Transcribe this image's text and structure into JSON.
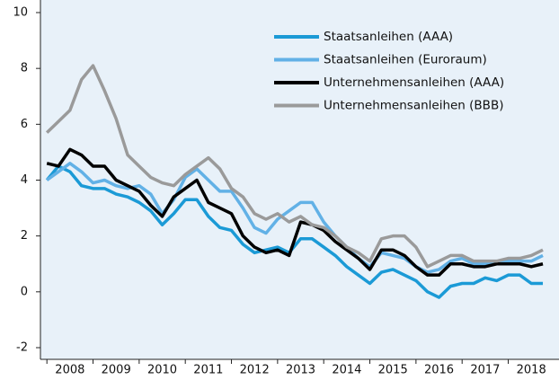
{
  "chart_data": {
    "type": "line",
    "x": [
      2008,
      2008.25,
      2008.5,
      2008.75,
      2009,
      2009.25,
      2009.5,
      2009.75,
      2010,
      2010.25,
      2010.5,
      2010.75,
      2011,
      2011.25,
      2011.5,
      2011.75,
      2012,
      2012.25,
      2012.5,
      2012.75,
      2013,
      2013.25,
      2013.5,
      2013.75,
      2014,
      2014.25,
      2014.5,
      2014.75,
      2015,
      2015.25,
      2015.5,
      2015.75,
      2016,
      2016.25,
      2016.5,
      2016.75,
      2017,
      2017.25,
      2017.5,
      2017.75,
      2018,
      2018.25,
      2018.5,
      2018.75
    ],
    "series": [
      {
        "name": "Staatsanleihen (AAA)",
        "color": "#1b9ad6",
        "values": [
          4.0,
          4.5,
          4.3,
          3.8,
          3.7,
          3.7,
          3.5,
          3.4,
          3.2,
          2.9,
          2.4,
          2.8,
          3.3,
          3.3,
          2.7,
          2.3,
          2.2,
          1.7,
          1.4,
          1.5,
          1.6,
          1.4,
          1.9,
          1.9,
          1.6,
          1.3,
          0.9,
          0.6,
          0.3,
          0.7,
          0.8,
          0.6,
          0.4,
          0.0,
          -0.2,
          0.2,
          0.3,
          0.3,
          0.5,
          0.4,
          0.6,
          0.6,
          0.3,
          0.3
        ]
      },
      {
        "name": "Staatsanleihen (Euroraum)",
        "color": "#62b1e6",
        "values": [
          4.0,
          4.3,
          4.6,
          4.3,
          3.9,
          4.0,
          3.8,
          3.7,
          3.8,
          3.5,
          2.8,
          3.3,
          4.1,
          4.4,
          4.0,
          3.6,
          3.6,
          3.0,
          2.3,
          2.1,
          2.6,
          2.9,
          3.2,
          3.2,
          2.5,
          2.0,
          1.6,
          1.2,
          0.9,
          1.4,
          1.3,
          1.2,
          0.9,
          0.7,
          0.8,
          1.1,
          1.2,
          1.0,
          1.0,
          1.0,
          1.1,
          1.1,
          1.1,
          1.3
        ]
      },
      {
        "name": "Unternehmensanleihen (AAA)",
        "color": "#000000",
        "values": [
          4.6,
          4.5,
          5.1,
          4.9,
          4.5,
          4.5,
          4.0,
          3.8,
          3.6,
          3.1,
          2.7,
          3.4,
          3.7,
          4.0,
          3.2,
          3.0,
          2.8,
          2.0,
          1.6,
          1.4,
          1.5,
          1.3,
          2.5,
          2.4,
          2.2,
          1.8,
          1.5,
          1.2,
          0.8,
          1.5,
          1.5,
          1.3,
          0.9,
          0.6,
          0.6,
          1.0,
          1.0,
          0.9,
          0.9,
          1.0,
          1.0,
          1.0,
          0.9,
          1.0
        ]
      },
      {
        "name": "Unternehmensanleihen (BBB)",
        "color": "#9a9a9a",
        "values": [
          5.7,
          6.1,
          6.5,
          7.6,
          8.1,
          7.2,
          6.2,
          4.9,
          4.5,
          4.1,
          3.9,
          3.8,
          4.2,
          4.5,
          4.8,
          4.4,
          3.7,
          3.4,
          2.8,
          2.6,
          2.8,
          2.5,
          2.7,
          2.4,
          2.3,
          2.0,
          1.6,
          1.4,
          1.1,
          1.9,
          2.0,
          2.0,
          1.6,
          0.9,
          1.1,
          1.3,
          1.3,
          1.1,
          1.1,
          1.1,
          1.2,
          1.2,
          1.3,
          1.5
        ]
      }
    ],
    "xlim": [
      2007.86,
      2019.1
    ],
    "xticks": [
      2008,
      2009,
      2010,
      2011,
      2012,
      2013,
      2014,
      2015,
      2016,
      2017,
      2018
    ],
    "ylim": [
      -2,
      10
    ],
    "yticks": [
      -2,
      0,
      2,
      4,
      6,
      8,
      10
    ],
    "grid": false,
    "legend": "upper right"
  }
}
